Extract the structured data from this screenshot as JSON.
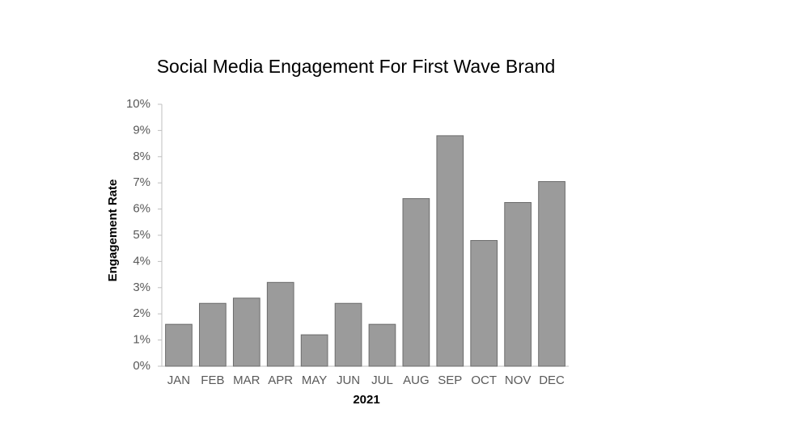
{
  "chart_data": {
    "type": "bar",
    "title": "Social Media Engagement For First Wave Brand",
    "x_label": "2021",
    "y_label": "Engagement Rate",
    "categories": [
      "JAN",
      "FEB",
      "MAR",
      "APR",
      "MAY",
      "JUN",
      "JUL",
      "AUG",
      "SEP",
      "OCT",
      "NOV",
      "DEC"
    ],
    "values": [
      1.6,
      2.4,
      2.6,
      3.2,
      1.2,
      2.4,
      1.6,
      6.4,
      8.8,
      4.8,
      6.25,
      7.05
    ],
    "color": "#9b9b9b",
    "ylim": [
      0,
      10
    ],
    "yticks": [
      {
        "value": 0,
        "label": "0%"
      },
      {
        "value": 1,
        "label": "1%"
      },
      {
        "value": 2,
        "label": "2%"
      },
      {
        "value": 3,
        "label": "3%"
      },
      {
        "value": 4,
        "label": "4%"
      },
      {
        "value": 5,
        "label": "5%"
      },
      {
        "value": 6,
        "label": "6%"
      },
      {
        "value": 7,
        "label": "7%"
      },
      {
        "value": 8,
        "label": "8%"
      },
      {
        "value": 9,
        "label": "9%"
      },
      {
        "value": 10,
        "label": "10%"
      }
    ],
    "grid": false
  }
}
